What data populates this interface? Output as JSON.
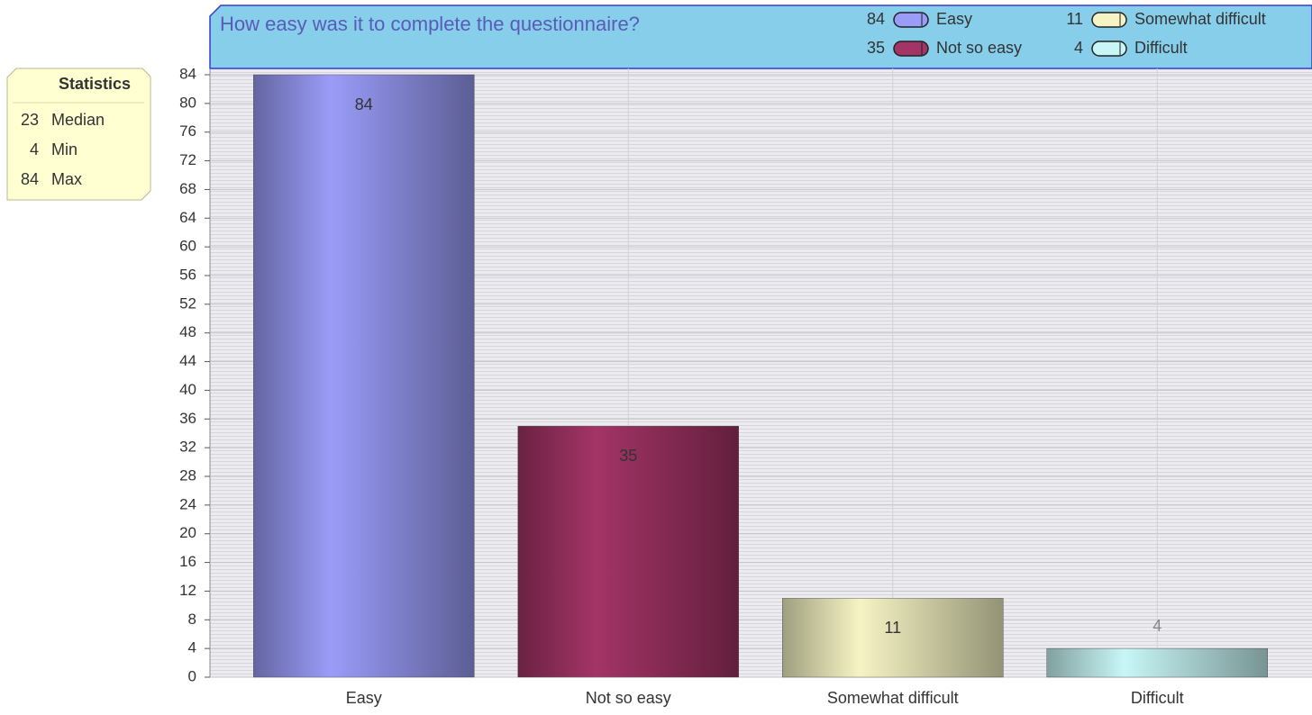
{
  "chart_data": {
    "type": "bar",
    "title": "How easy was it to complete the questionnaire?",
    "categories": [
      "Easy",
      "Not so easy",
      "Somewhat difficult",
      "Difficult"
    ],
    "values": [
      84,
      35,
      11,
      4
    ],
    "colors": [
      "#9a9cf8",
      "#a33466",
      "#f6f4c4",
      "#c8f6f6"
    ],
    "ylim": [
      0,
      84
    ],
    "yticks": [
      0,
      4,
      8,
      12,
      16,
      20,
      24,
      28,
      32,
      36,
      40,
      44,
      48,
      52,
      56,
      60,
      64,
      68,
      72,
      76,
      80,
      84
    ],
    "grid": true,
    "legend": "top-right",
    "statistics": {
      "title": "Statistics",
      "rows": [
        {
          "value": 23,
          "label": "Median"
        },
        {
          "value": 4,
          "label": "Min"
        },
        {
          "value": 84,
          "label": "Max"
        }
      ]
    }
  }
}
